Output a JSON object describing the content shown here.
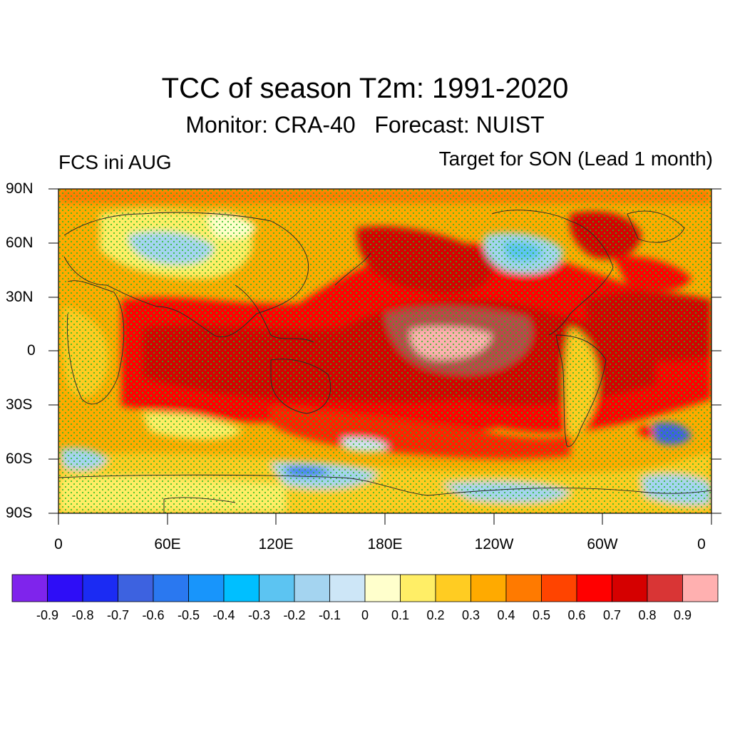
{
  "title": "TCC of season T2m: 1991-2020",
  "subtitle": "Monitor: CRA-40   Forecast: NUIST",
  "left_string": "FCS ini AUG",
  "right_string": "Target for SON (Lead 1 month)",
  "lat_labels": [
    "90N",
    "60N",
    "30N",
    "0",
    "30S",
    "60S",
    "90S"
  ],
  "lon_labels": [
    "0",
    "60E",
    "120E",
    "180E",
    "120W",
    "60W",
    "0"
  ],
  "colorbar": {
    "colors": [
      "#7f24ec",
      "#2e0df7",
      "#1b2bf3",
      "#3d62e0",
      "#2a78f0",
      "#1895fb",
      "#00bfff",
      "#5cc4f2",
      "#a4d4f0",
      "#cde6f7",
      "#ffffcc",
      "#ffee66",
      "#ffcc22",
      "#ffaa00",
      "#ff7a00",
      "#ff4400",
      "#ff0000",
      "#d50000",
      "#d93535",
      "#ffb0b0"
    ],
    "labels": [
      "-0.9",
      "-0.8",
      "-0.7",
      "-0.6",
      "-0.5",
      "-0.4",
      "-0.3",
      "-0.2",
      "-0.1",
      "0",
      "0.1",
      "0.2",
      "0.3",
      "0.4",
      "0.5",
      "0.6",
      "0.7",
      "0.8",
      "0.9"
    ]
  },
  "significance_marker_color": "#22bb22"
}
